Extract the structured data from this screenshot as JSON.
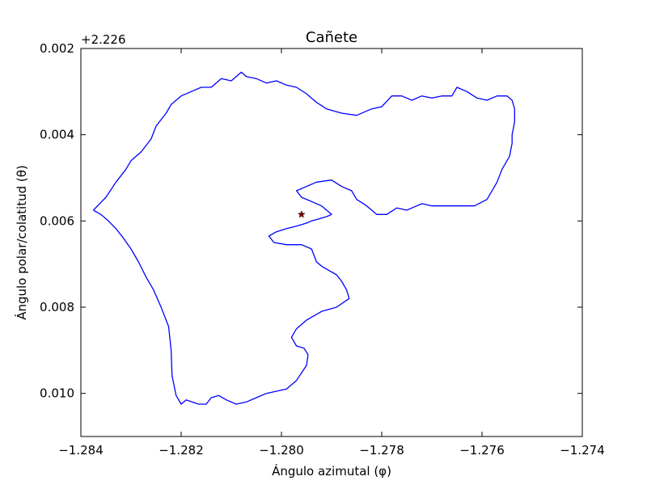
{
  "chart_data": {
    "type": "line",
    "title": "Cañete",
    "xlabel": "Ángulo azimutal (φ)",
    "ylabel": "Ángulo polar/colatitud (θ)",
    "y_offset_label": "+2.226",
    "xlim": [
      -1.284,
      -1.274
    ],
    "ylim": [
      0.002,
      0.011
    ],
    "y_inverted": true,
    "grid": false,
    "x_ticks": [
      -1.284,
      -1.282,
      -1.28,
      -1.278,
      -1.276,
      -1.274
    ],
    "x_tick_labels": [
      "−1.284",
      "−1.282",
      "−1.280",
      "−1.278",
      "−1.276",
      "−1.274"
    ],
    "y_ticks": [
      0.002,
      0.004,
      0.006,
      0.008,
      0.01
    ],
    "y_tick_labels": [
      "0.002",
      "0.004",
      "0.006",
      "0.008",
      "0.010"
    ],
    "colors": {
      "boundary": "#0000ff",
      "marker": "#8b0000"
    },
    "series": [
      {
        "kind": "boundary",
        "x": [
          -1.28375,
          -1.2836,
          -1.28345,
          -1.2833,
          -1.28315,
          -1.283,
          -1.28285,
          -1.2827,
          -1.28255,
          -1.2824,
          -1.28225,
          -1.2822,
          -1.28218,
          -1.2821,
          -1.282,
          -1.2819,
          -1.28165,
          -1.2815,
          -1.2814,
          -1.28125,
          -1.2811,
          -1.2809,
          -1.2807,
          -1.2805,
          -1.2803,
          -1.2801,
          -1.2799,
          -1.2797,
          -1.2795,
          -1.27947,
          -1.27955,
          -1.2797,
          -1.2798,
          -1.2797,
          -1.2795,
          -1.2792,
          -1.2789,
          -1.27865,
          -1.2787,
          -1.2788,
          -1.2789,
          -1.27905,
          -1.2792,
          -1.2793,
          -1.27935,
          -1.2794,
          -1.2796,
          -1.2799,
          -1.28015,
          -1.28025,
          -1.2801,
          -1.2799,
          -1.2797,
          -1.2795,
          -1.2794,
          -1.27925,
          -1.2791,
          -1.279,
          -1.2791,
          -1.2792,
          -1.2794,
          -1.2796,
          -1.2797,
          -1.2795,
          -1.2793,
          -1.279,
          -1.2788,
          -1.2786,
          -1.2785,
          -1.2783,
          -1.2781,
          -1.2779,
          -1.2777,
          -1.2775,
          -1.2772,
          -1.277,
          -1.2768,
          -1.2766,
          -1.2764,
          -1.27615,
          -1.2759,
          -1.2757,
          -1.2756,
          -1.27545,
          -1.2754,
          -1.2754,
          -1.27535,
          -1.27535,
          -1.2754,
          -1.2755,
          -1.2757,
          -1.2759,
          -1.2761,
          -1.2763,
          -1.2765,
          -1.2766,
          -1.2768,
          -1.277,
          -1.2772,
          -1.2774,
          -1.2776,
          -1.2778,
          -1.278,
          -1.2782,
          -1.2785,
          -1.2788,
          -1.2791,
          -1.2793,
          -1.2795,
          -1.2797,
          -1.2799,
          -1.2801,
          -1.2803,
          -1.2805,
          -1.2807,
          -1.2808,
          -1.281,
          -1.2812,
          -1.2814,
          -1.2816,
          -1.2818,
          -1.282,
          -1.2822,
          -1.2823,
          -1.2825,
          -1.2826,
          -1.2828,
          -1.283,
          -1.2831,
          -1.2833,
          -1.2835,
          -1.28375
        ],
        "y": [
          0.00575,
          0.00585,
          0.006,
          0.00618,
          0.0064,
          0.00665,
          0.00695,
          0.0073,
          0.0076,
          0.008,
          0.00845,
          0.009,
          0.0096,
          0.01005,
          0.01025,
          0.01015,
          0.01025,
          0.01025,
          0.0101,
          0.01005,
          0.01015,
          0.01025,
          0.0102,
          0.0101,
          0.01,
          0.00995,
          0.0099,
          0.0097,
          0.00935,
          0.0091,
          0.00895,
          0.0089,
          0.0087,
          0.0085,
          0.0083,
          0.0081,
          0.008,
          0.0078,
          0.0076,
          0.0074,
          0.00725,
          0.00715,
          0.00705,
          0.00695,
          0.0068,
          0.00665,
          0.00655,
          0.00655,
          0.0065,
          0.00635,
          0.00625,
          0.00618,
          0.00612,
          0.00605,
          0.006,
          0.00595,
          0.0059,
          0.00585,
          0.00575,
          0.00565,
          0.00555,
          0.00545,
          0.0053,
          0.0052,
          0.0051,
          0.00505,
          0.0052,
          0.0053,
          0.0055,
          0.00565,
          0.00585,
          0.00585,
          0.0057,
          0.00575,
          0.0056,
          0.00565,
          0.00565,
          0.00565,
          0.00565,
          0.00565,
          0.0055,
          0.0051,
          0.0048,
          0.0045,
          0.0042,
          0.004,
          0.0037,
          0.0034,
          0.0032,
          0.0031,
          0.0031,
          0.0032,
          0.00315,
          0.003,
          0.0029,
          0.0031,
          0.0031,
          0.00315,
          0.0031,
          0.0032,
          0.0031,
          0.0031,
          0.00335,
          0.0034,
          0.00355,
          0.0035,
          0.0034,
          0.00325,
          0.00305,
          0.0029,
          0.00285,
          0.00275,
          0.0028,
          0.0027,
          0.00265,
          0.00255,
          0.00275,
          0.0027,
          0.0029,
          0.0029,
          0.003,
          0.0031,
          0.0033,
          0.0035,
          0.0038,
          0.0041,
          0.0044,
          0.0046,
          0.0048,
          0.0051,
          0.00545,
          0.00575
        ]
      },
      {
        "kind": "marker",
        "marker": "star",
        "x": [
          -1.2796
        ],
        "y": [
          0.00585
        ]
      }
    ]
  }
}
